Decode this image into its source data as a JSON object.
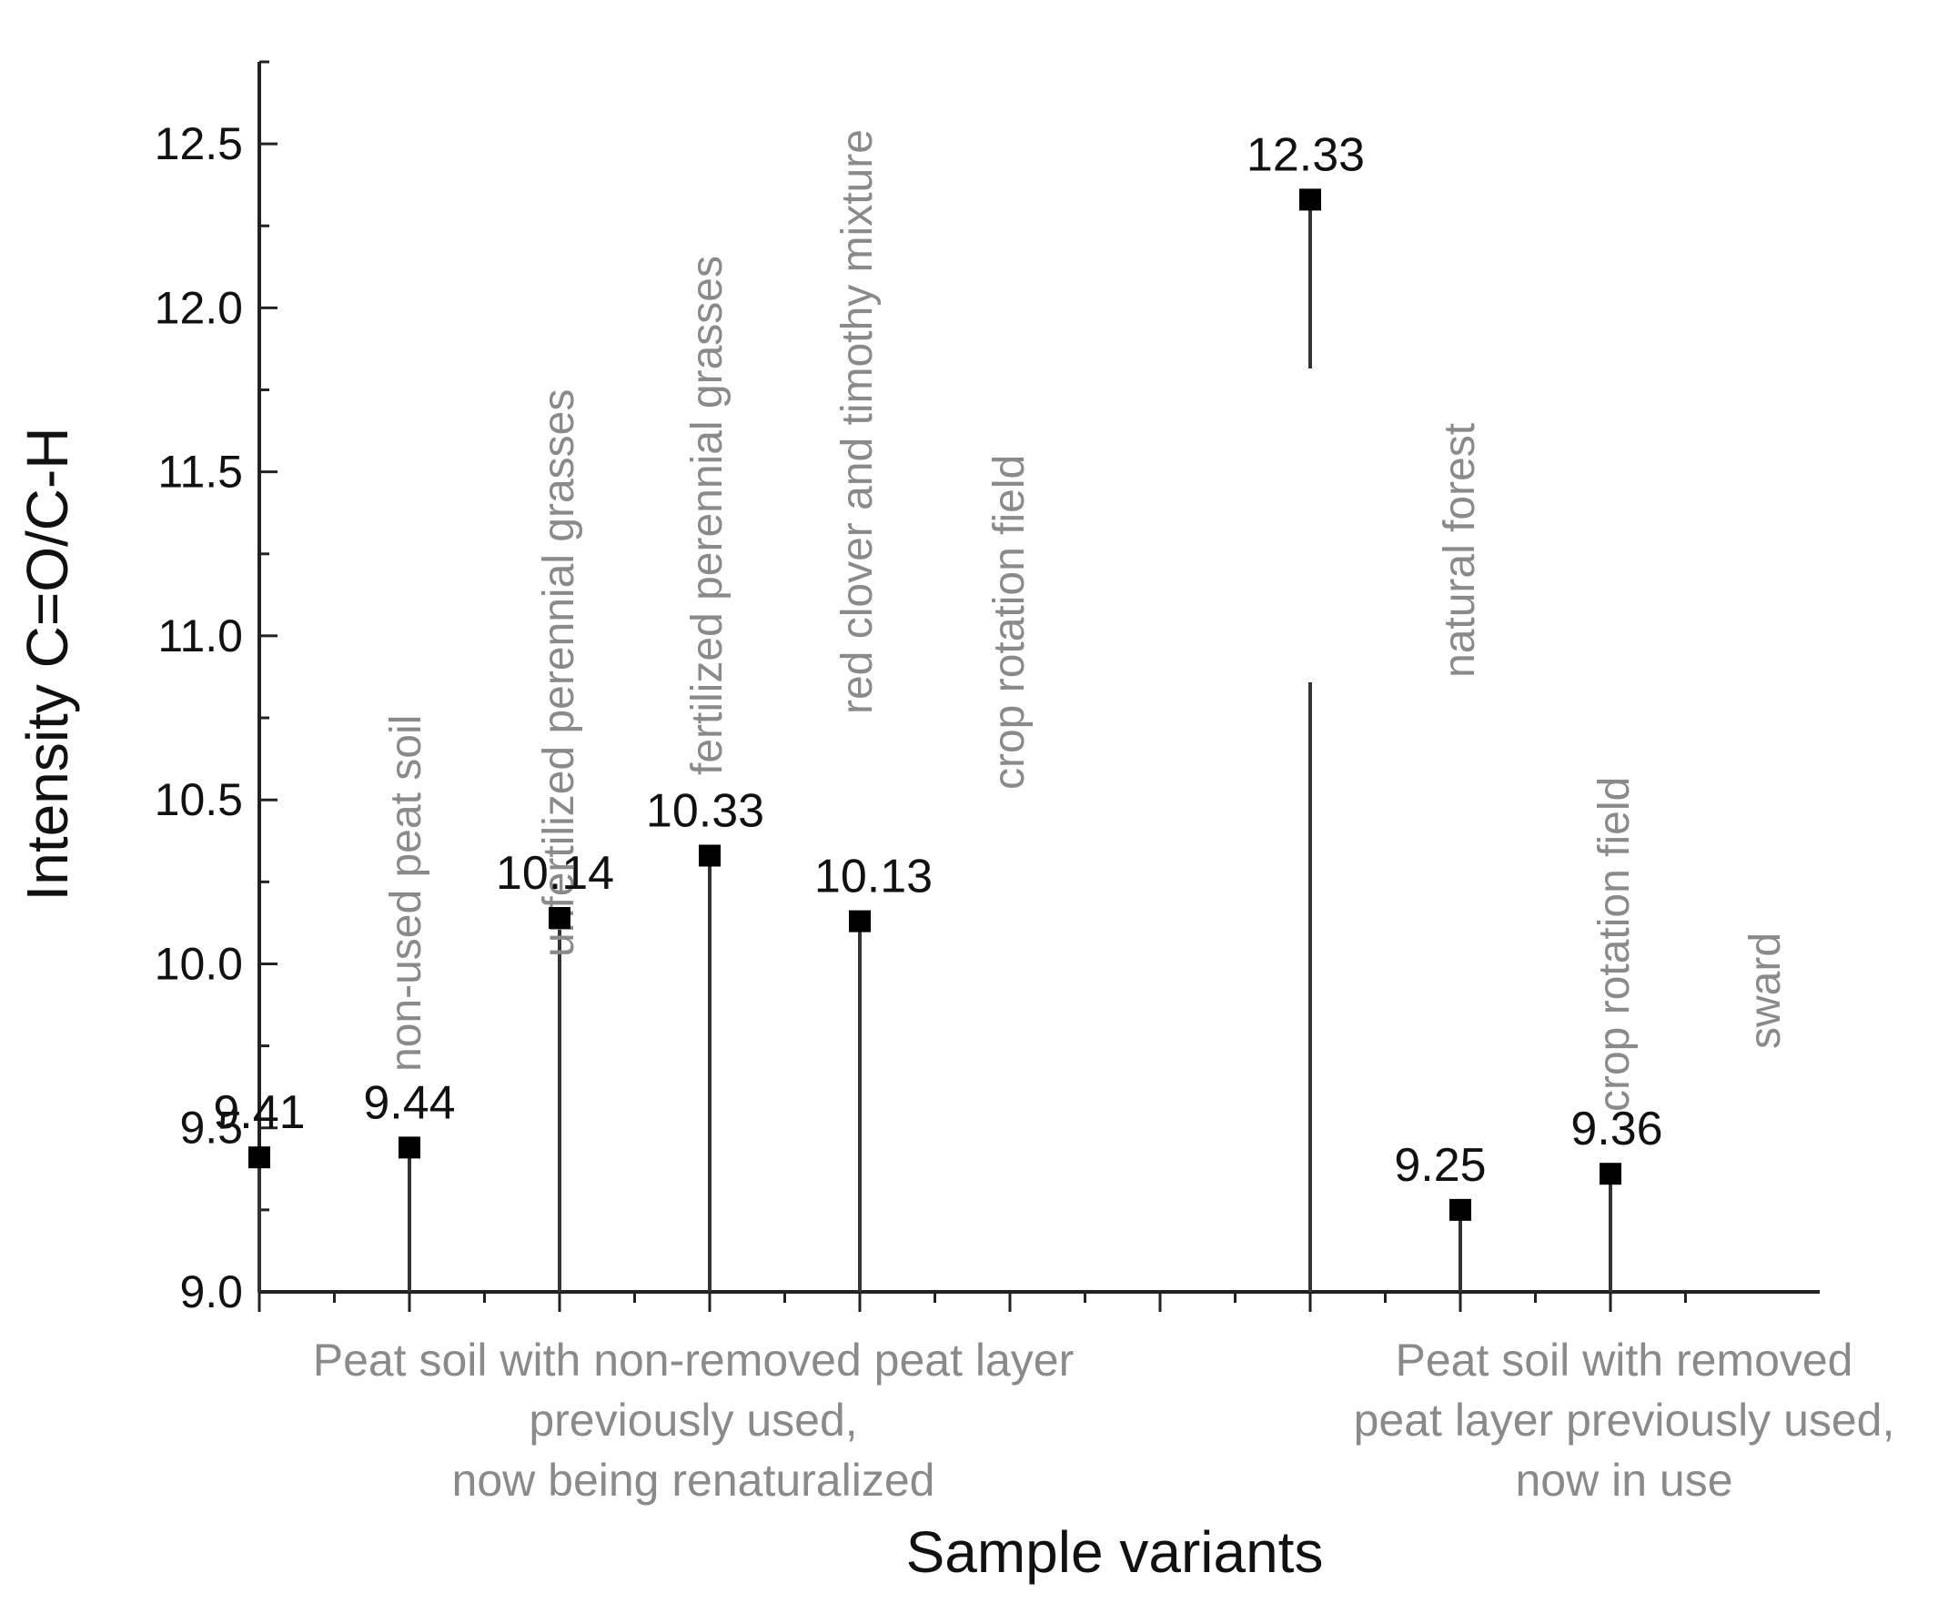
{
  "chart_data": {
    "type": "scatter",
    "title": "",
    "xlabel": "Sample variants",
    "ylabel": "Intensity C=O/C-H",
    "ylim": [
      9.0,
      12.75
    ],
    "yticks": [
      9.0,
      9.5,
      10.0,
      10.5,
      11.0,
      11.5,
      12.0,
      12.5
    ],
    "ytick_labels": [
      "9.0",
      "9.5",
      "10.0",
      "10.5",
      "11.0",
      "11.5",
      "12.0",
      "12.5"
    ],
    "xlim": [
      0,
      10.5
    ],
    "grid": false,
    "drop_lines": true,
    "points": [
      {
        "x": 1,
        "y": 9.41,
        "label": "9.41",
        "sample": "non-used peat soil"
      },
      {
        "x": 2,
        "y": 9.44,
        "label": "9.44",
        "sample": "unfertilized perennial grasses"
      },
      {
        "x": 3,
        "y": 10.14,
        "label": "10.14",
        "sample": "fertilized perennial grasses"
      },
      {
        "x": 4,
        "y": 10.33,
        "label": "10.33",
        "sample": "red clover and timothy mixture"
      },
      {
        "x": 5,
        "y": 10.13,
        "label": "10.13",
        "sample": "crop rotation field"
      },
      {
        "x": 8,
        "y": 12.33,
        "label": "12.33",
        "sample": "natural forest"
      },
      {
        "x": 9,
        "y": 9.25,
        "label": "9.25",
        "sample": "crop rotation field"
      },
      {
        "x": 10,
        "y": 9.36,
        "label": "9.36",
        "sample": "sward"
      }
    ],
    "groups": [
      {
        "lines": [
          "Peat soil with non-removed peat layer",
          "previously used,",
          "now being renaturalized"
        ],
        "center_x": 3
      },
      {
        "lines": [
          "Peat soil with removed",
          "peat layer previously used,",
          "now in use"
        ],
        "center_x": 9
      }
    ]
  }
}
